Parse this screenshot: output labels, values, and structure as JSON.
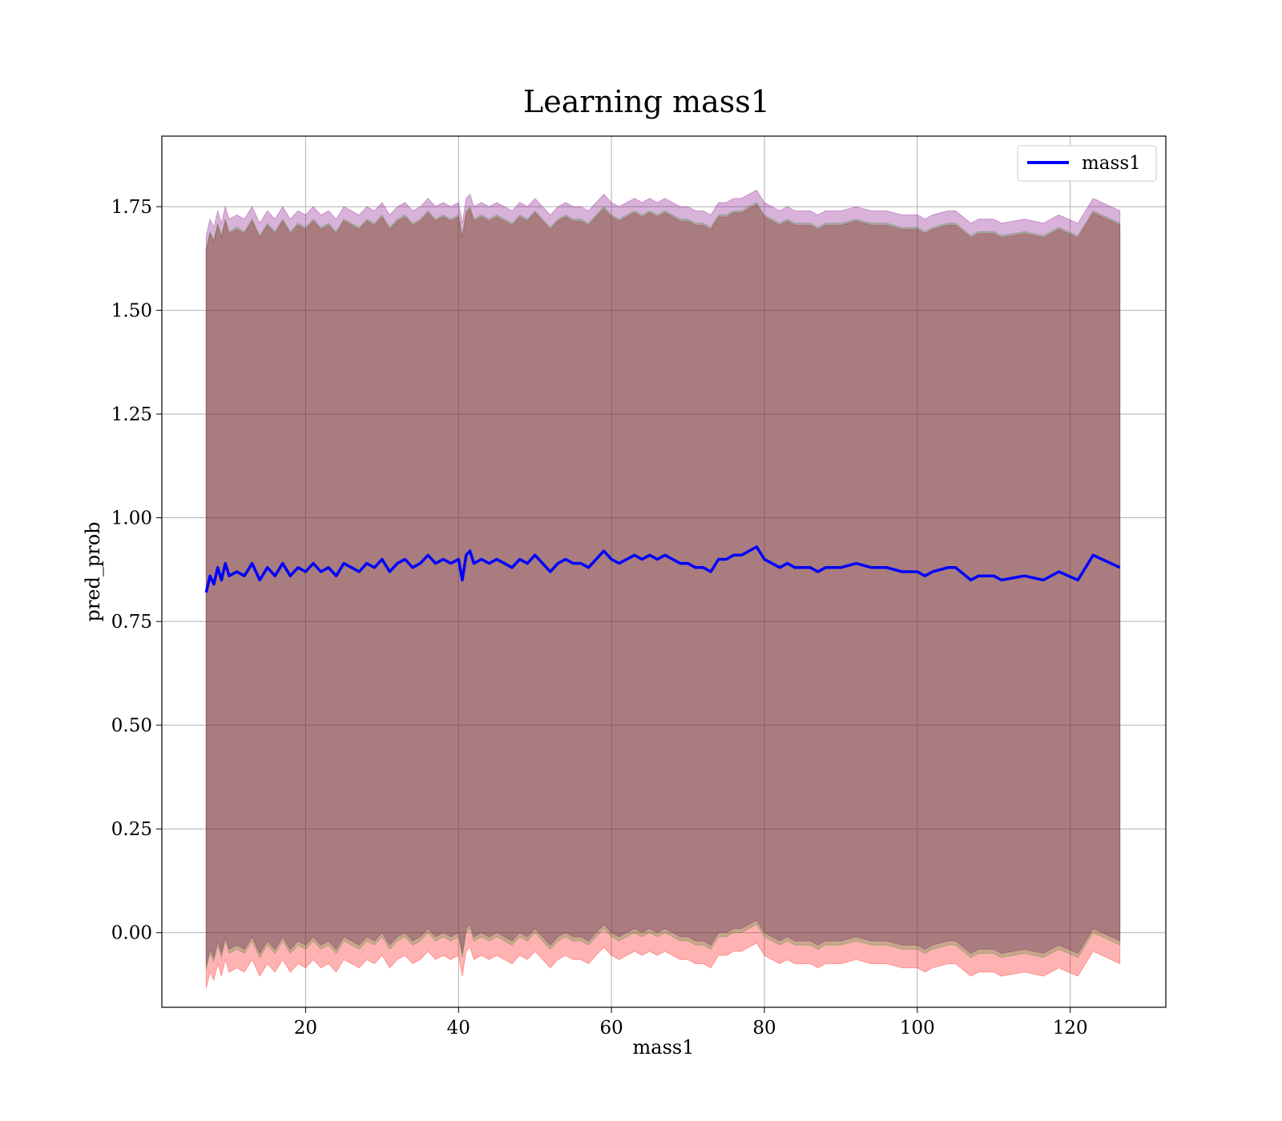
{
  "chart_data": {
    "type": "line",
    "title": "Learning mass1",
    "xlabel": "mass1",
    "ylabel": "pred_prob",
    "xlim": [
      1.2,
      132.5
    ],
    "ylim": [
      -0.18,
      1.92
    ],
    "xticks": [
      20,
      40,
      60,
      80,
      100,
      120
    ],
    "yticks": [
      0.0,
      0.25,
      0.5,
      0.75,
      1.0,
      1.25,
      1.5,
      1.75
    ],
    "grid": true,
    "legend": {
      "position": "top-right"
    },
    "series": [
      {
        "name": "mass1",
        "color": "#0000ff",
        "x": [
          7.0,
          7.5,
          8.0,
          8.5,
          9.0,
          9.5,
          10.0,
          11.0,
          12.0,
          13.0,
          14.0,
          15.0,
          16.0,
          17.0,
          18.0,
          19.0,
          20.0,
          21.0,
          22.0,
          23.0,
          24.0,
          25.0,
          26.0,
          27.0,
          28.0,
          29.0,
          30.0,
          31.0,
          32.0,
          33.0,
          34.0,
          35.0,
          36.0,
          37.0,
          38.0,
          39.0,
          40.0,
          40.5,
          41.0,
          41.5,
          42.0,
          43.0,
          44.0,
          45.0,
          46.0,
          47.0,
          48.0,
          49.0,
          50.0,
          51.0,
          52.0,
          53.0,
          54.0,
          55.0,
          56.0,
          57.0,
          58.0,
          59.0,
          60.0,
          61.0,
          62.0,
          63.0,
          64.0,
          65.0,
          66.0,
          67.0,
          68.0,
          69.0,
          70.0,
          71.0,
          72.0,
          73.0,
          74.0,
          75.0,
          76.0,
          77.0,
          78.0,
          79.0,
          80.0,
          81.0,
          82.0,
          83.0,
          84.0,
          85.0,
          86.0,
          87.0,
          88.0,
          89.0,
          90.0,
          92.0,
          94.0,
          96.0,
          98.0,
          99.0,
          100.0,
          101.0,
          102.0,
          104.0,
          105.0,
          107.0,
          108.0,
          110.0,
          111.0,
          114.0,
          116.5,
          118.5,
          121.0,
          123.0,
          126.5
        ],
        "values": [
          0.82,
          0.86,
          0.84,
          0.88,
          0.85,
          0.89,
          0.86,
          0.87,
          0.86,
          0.89,
          0.85,
          0.88,
          0.86,
          0.89,
          0.86,
          0.88,
          0.87,
          0.89,
          0.87,
          0.88,
          0.86,
          0.89,
          0.88,
          0.87,
          0.89,
          0.88,
          0.9,
          0.87,
          0.89,
          0.9,
          0.88,
          0.89,
          0.91,
          0.89,
          0.9,
          0.89,
          0.9,
          0.85,
          0.91,
          0.92,
          0.89,
          0.9,
          0.89,
          0.9,
          0.89,
          0.88,
          0.9,
          0.89,
          0.91,
          0.89,
          0.87,
          0.89,
          0.9,
          0.89,
          0.89,
          0.88,
          0.9,
          0.92,
          0.9,
          0.89,
          0.9,
          0.91,
          0.9,
          0.91,
          0.9,
          0.91,
          0.9,
          0.89,
          0.89,
          0.88,
          0.88,
          0.87,
          0.9,
          0.9,
          0.91,
          0.91,
          0.92,
          0.93,
          0.9,
          0.89,
          0.88,
          0.89,
          0.88,
          0.88,
          0.88,
          0.87,
          0.88,
          0.88,
          0.88,
          0.89,
          0.88,
          0.88,
          0.87,
          0.87,
          0.87,
          0.86,
          0.87,
          0.88,
          0.88,
          0.85,
          0.86,
          0.86,
          0.85,
          0.86,
          0.85,
          0.87,
          0.85,
          0.91,
          0.88
        ]
      }
    ],
    "bands": [
      {
        "color": "#ff0000",
        "opacity": 0.3,
        "offset": -0.065,
        "half_width": 0.89
      },
      {
        "color": "#800080",
        "opacity": 0.3,
        "offset": -0.02,
        "half_width": 0.88
      },
      {
        "color": "#008000",
        "opacity": 0.22,
        "offset": -0.04,
        "half_width": 0.87
      }
    ]
  }
}
